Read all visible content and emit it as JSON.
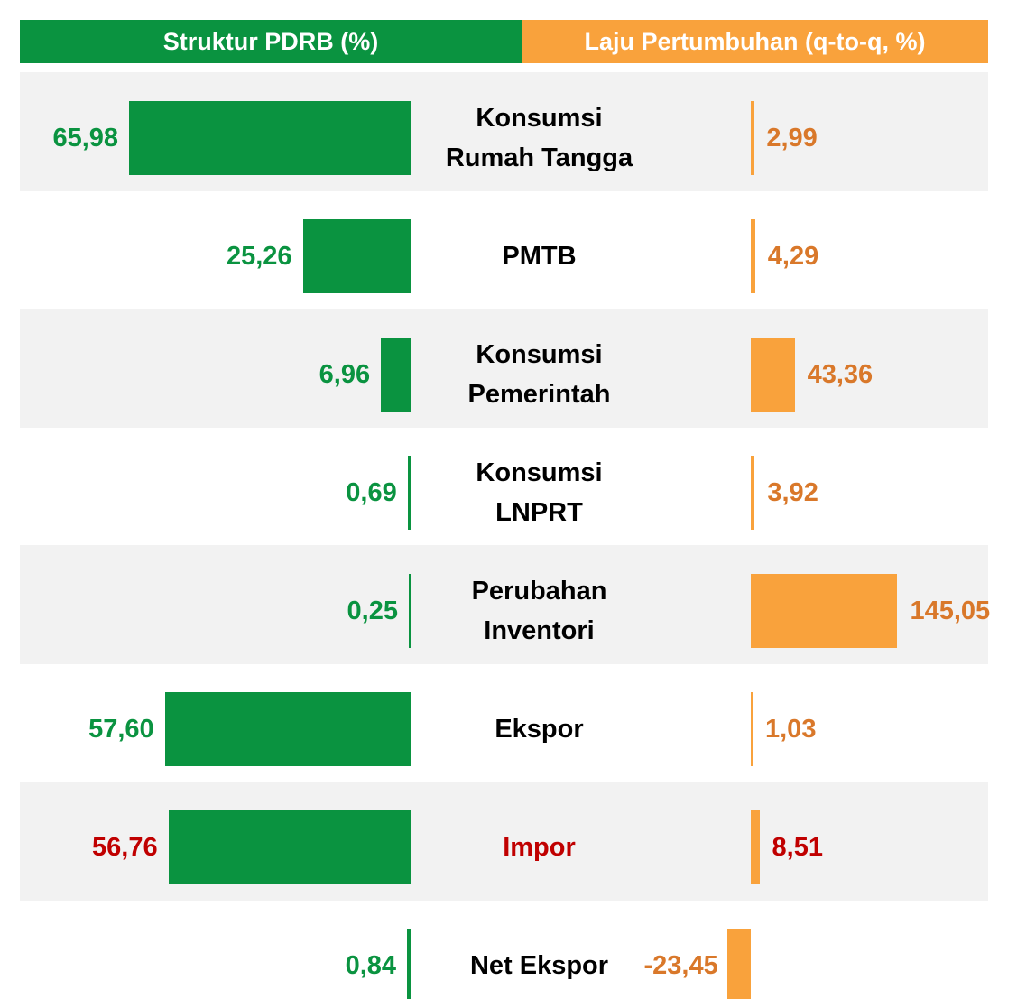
{
  "chart_data": {
    "type": "bar",
    "categories": [
      "Konsumsi\nRumah Tangga",
      "PMTB",
      "Konsumsi\nPemerintah",
      "Konsumsi\nLNPRT",
      "Perubahan\nInventori",
      "Ekspor",
      "Impor",
      "Net Ekspor"
    ],
    "category_colors": [
      "#000000",
      "#000000",
      "#000000",
      "#000000",
      "#000000",
      "#000000",
      "#c00000",
      "#000000"
    ],
    "series": [
      {
        "name": "Struktur PDRB (%)",
        "color": "#0a9340",
        "header_color": "#0a9340",
        "xlim": [
          0,
          70
        ],
        "values": [
          65.98,
          25.26,
          6.96,
          0.69,
          0.25,
          57.6,
          56.76,
          0.84
        ],
        "value_labels": [
          "65,98",
          "25,26",
          "6,96",
          "0,69",
          "0,25",
          "57,60",
          "56,76",
          "0,84"
        ],
        "label_colors": [
          "#0a9340",
          "#0a9340",
          "#0a9340",
          "#0a9340",
          "#0a9340",
          "#0a9340",
          "#c00000",
          "#0a9340"
        ]
      },
      {
        "name": "Laju Pertumbuhan (q-to-q, %)",
        "color": "#f9a23c",
        "header_color": "#f9a23c",
        "xlim": [
          0,
          150
        ],
        "values": [
          2.99,
          4.29,
          43.36,
          3.92,
          145.05,
          1.03,
          8.51,
          -23.45
        ],
        "value_labels": [
          "2,99",
          "4,29",
          "43,36",
          "3,92",
          "145,05",
          "1,03",
          "8,51",
          "-23,45"
        ],
        "label_colors": [
          "#d9782a",
          "#d9782a",
          "#d9782a",
          "#d9782a",
          "#d9782a",
          "#d9782a",
          "#c00000",
          "#d9782a"
        ]
      }
    ]
  }
}
